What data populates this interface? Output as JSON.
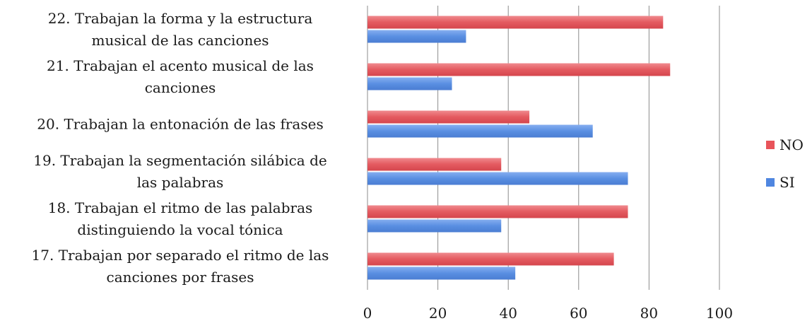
{
  "chart_data": {
    "type": "bar",
    "orientation": "horizontal",
    "categories": [
      [
        "22. Trabajan la forma y la estructura",
        "musical de las canciones"
      ],
      [
        "21. Trabajan el acento musical de las",
        "canciones"
      ],
      [
        "20. Trabajan la entonación de las frases"
      ],
      [
        "19. Trabajan la segmentación silábica de",
        "las palabras"
      ],
      [
        "18. Trabajan el ritmo de las palabras",
        "distinguiendo la vocal tónica"
      ],
      [
        "17. Trabajan por separado el ritmo de las",
        "canciones por frases"
      ]
    ],
    "series": [
      {
        "name": "NO",
        "color": "#e8545a",
        "values": [
          84,
          86,
          46,
          38,
          74,
          70
        ]
      },
      {
        "name": "SI",
        "color": "#4f86e0",
        "values": [
          28,
          24,
          64,
          74,
          38,
          42
        ]
      }
    ],
    "xlim": [
      0,
      100
    ],
    "xticks": [
      "0",
      "20",
      "40",
      "60",
      "80",
      "100"
    ],
    "grid": true,
    "legend_position": "right"
  }
}
